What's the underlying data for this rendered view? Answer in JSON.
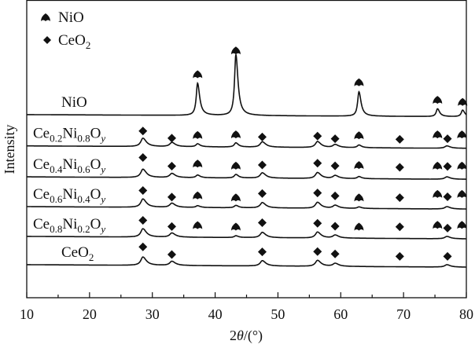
{
  "chart_data": {
    "type": "line",
    "title": "",
    "xlabel_parts": [
      "2",
      "θ",
      "/(°)"
    ],
    "ylabel": "Intensity",
    "xlim": [
      10,
      80
    ],
    "ylim": [
      0,
      100
    ],
    "xticks": [
      10,
      20,
      30,
      40,
      50,
      60,
      70,
      80
    ],
    "xtick_labels": [
      "10",
      "20",
      "30",
      "40",
      "50",
      "60",
      "70",
      "80"
    ],
    "legend": {
      "placement": "top-left",
      "items": [
        {
          "marker": "spade",
          "label": "NiO"
        },
        {
          "marker": "diamond",
          "label_main": "CeO",
          "label_sub": "2"
        }
      ]
    },
    "series": [
      {
        "name": "NiO",
        "label_parts": [
          "NiO"
        ],
        "baseline": 61.5,
        "slope": -0.01,
        "peaks": [
          [
            37.2,
            10.8,
            0.25
          ],
          [
            43.3,
            20.5,
            0.25
          ],
          [
            62.9,
            8.2,
            0.25
          ],
          [
            75.4,
            2.6,
            0.25
          ],
          [
            79.4,
            2.2,
            0.25
          ]
        ],
        "markers": [
          [
            "spade",
            37.2,
            13.3
          ],
          [
            "spade",
            43.3,
            21.3
          ],
          [
            "spade",
            62.9,
            10.6
          ],
          [
            "spade",
            75.4,
            4.7
          ],
          [
            "spade",
            79.4,
            4
          ]
        ]
      },
      {
        "name": "Ce0.2Ni0.8Oy",
        "label_parts": [
          "Ce",
          "0.2",
          "Ni",
          "0.8",
          "O",
          "y"
        ],
        "baseline": 51,
        "slope": -0.012,
        "peaks": [
          [
            28.5,
            2.8,
            0.4
          ],
          [
            33.1,
            1.4,
            0.4
          ],
          [
            37.2,
            1.0,
            0.3
          ],
          [
            43.3,
            1.4,
            0.3
          ],
          [
            47.5,
            1.8,
            0.4
          ],
          [
            56.3,
            2.0,
            0.4
          ],
          [
            59.1,
            1.0,
            0.4
          ],
          [
            62.9,
            0.9,
            0.3
          ],
          [
            76.9,
            0.8,
            0.4
          ]
        ],
        "markers": [
          [
            "diamond",
            28.5,
            5
          ],
          [
            "diamond",
            33.1,
            2.6
          ],
          [
            "spade",
            37.2,
            3.4
          ],
          [
            "spade",
            43.3,
            3.6
          ],
          [
            "diamond",
            47.5,
            3
          ],
          [
            "diamond",
            56.3,
            3.3
          ],
          [
            "diamond",
            59.1,
            2.4
          ],
          [
            "spade",
            62.9,
            3.3
          ],
          [
            "diamond",
            69.4,
            2.2
          ],
          [
            "spade",
            75.4,
            3.6
          ],
          [
            "diamond",
            77.0,
            2.4
          ],
          [
            "spade",
            79.3,
            3.6
          ]
        ]
      },
      {
        "name": "Ce0.4Ni0.6Oy",
        "label_parts": [
          "Ce",
          "0.4",
          "Ni",
          "0.6",
          "O",
          "y"
        ],
        "baseline": 40.6,
        "slope": -0.012,
        "peaks": [
          [
            28.5,
            2.8,
            0.4
          ],
          [
            33.1,
            1.4,
            0.4
          ],
          [
            37.2,
            0.9,
            0.3
          ],
          [
            43.3,
            1.2,
            0.3
          ],
          [
            47.5,
            1.8,
            0.4
          ],
          [
            56.3,
            2.0,
            0.4
          ],
          [
            59.1,
            1.0,
            0.4
          ],
          [
            62.9,
            0.7,
            0.3
          ],
          [
            76.9,
            0.8,
            0.4
          ]
        ],
        "markers": [
          [
            "diamond",
            28.5,
            6.5
          ],
          [
            "diamond",
            33.1,
            3.6
          ],
          [
            "spade",
            37.2,
            4.2
          ],
          [
            "spade",
            43.3,
            3.5
          ],
          [
            "diamond",
            47.5,
            4
          ],
          [
            "diamond",
            56.3,
            4.6
          ],
          [
            "diamond",
            59.1,
            3.7
          ],
          [
            "spade",
            62.9,
            3.7
          ],
          [
            "diamond",
            69.4,
            3.2
          ],
          [
            "spade",
            75.4,
            3.5
          ],
          [
            "diamond",
            77.0,
            3.5
          ],
          [
            "spade",
            79.3,
            3.5
          ]
        ]
      },
      {
        "name": "Ce0.6Ni0.4Oy",
        "label_parts": [
          "Ce",
          "0.6",
          "Ni",
          "0.4",
          "O",
          "y"
        ],
        "baseline": 30.6,
        "slope": -0.012,
        "peaks": [
          [
            28.5,
            2.8,
            0.4
          ],
          [
            33.1,
            1.4,
            0.4
          ],
          [
            37.2,
            0.6,
            0.3
          ],
          [
            43.3,
            0.8,
            0.3
          ],
          [
            47.5,
            1.8,
            0.4
          ],
          [
            56.3,
            2.0,
            0.4
          ],
          [
            59.1,
            1.0,
            0.4
          ],
          [
            62.9,
            0.5,
            0.3
          ],
          [
            76.9,
            0.8,
            0.4
          ]
        ],
        "markers": [
          [
            "diamond",
            28.5,
            5.4
          ],
          [
            "diamond",
            33.1,
            3.2
          ],
          [
            "spade",
            37.2,
            3.5
          ],
          [
            "spade",
            43.3,
            2.8
          ],
          [
            "diamond",
            47.5,
            4.4
          ],
          [
            "diamond",
            56.3,
            4.6
          ],
          [
            "diamond",
            59.1,
            3.6
          ],
          [
            "spade",
            62.9,
            2.8
          ],
          [
            "diamond",
            69.4,
            3
          ],
          [
            "spade",
            75.4,
            4
          ],
          [
            "diamond",
            77.0,
            3.3
          ],
          [
            "spade",
            79.3,
            4
          ]
        ]
      },
      {
        "name": "Ce0.8Ni0.2Oy",
        "label_parts": [
          "Ce",
          "0.8",
          "Ni",
          "0.2",
          "O",
          "y"
        ],
        "baseline": 20.6,
        "slope": -0.012,
        "peaks": [
          [
            28.5,
            2.8,
            0.4
          ],
          [
            33.1,
            1.4,
            0.4
          ],
          [
            43.3,
            0.6,
            0.3
          ],
          [
            47.5,
            1.8,
            0.4
          ],
          [
            56.3,
            2.0,
            0.4
          ],
          [
            59.1,
            1.0,
            0.4
          ],
          [
            76.9,
            0.8,
            0.4
          ]
        ],
        "markers": [
          [
            "diamond",
            28.5,
            5.4
          ],
          [
            "diamond",
            33.1,
            3.3
          ],
          [
            "spade",
            37.2,
            3.5
          ],
          [
            "spade",
            43.3,
            3
          ],
          [
            "diamond",
            47.5,
            4.6
          ],
          [
            "diamond",
            56.3,
            4.4
          ],
          [
            "diamond",
            59.1,
            3.4
          ],
          [
            "spade",
            62.9,
            3
          ],
          [
            "diamond",
            69.4,
            3.2
          ],
          [
            "spade",
            75.4,
            3.6
          ],
          [
            "diamond",
            77.0,
            2.8
          ],
          [
            "spade",
            79.3,
            3.6
          ]
        ]
      },
      {
        "name": "CeO2",
        "label_parts": [
          "CeO",
          "2"
        ],
        "baseline": 11.1,
        "slope": -0.012,
        "peaks": [
          [
            28.5,
            2.8,
            0.4
          ],
          [
            33.1,
            1.4,
            0.4
          ],
          [
            47.5,
            1.8,
            0.4
          ],
          [
            56.3,
            2.0,
            0.4
          ],
          [
            59.1,
            1.0,
            0.4
          ],
          [
            76.9,
            0.8,
            0.4
          ]
        ],
        "markers": [
          [
            "diamond",
            28.5,
            6
          ],
          [
            "diamond",
            33.1,
            3.4
          ],
          [
            "diamond",
            47.5,
            4.3
          ],
          [
            "diamond",
            56.3,
            4.4
          ],
          [
            "diamond",
            59.1,
            3.6
          ],
          [
            "diamond",
            69.4,
            2.8
          ],
          [
            "diamond",
            77.0,
            2.8
          ]
        ]
      }
    ]
  }
}
